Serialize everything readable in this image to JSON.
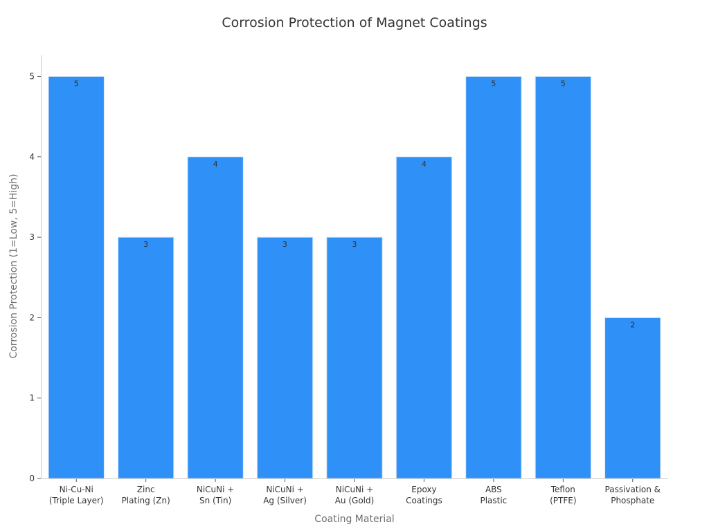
{
  "chart_data": {
    "type": "bar",
    "title": "Corrosion Protection of Magnet Coatings",
    "xlabel": "Coating Material",
    "ylabel": "Corrosion Protection (1=Low, 5=High)",
    "categories": [
      [
        "Ni-Cu-Ni",
        "(Triple Layer)"
      ],
      [
        "Zinc",
        "Plating (Zn)"
      ],
      [
        "NiCuNi +",
        "Sn (Tin)"
      ],
      [
        "NiCuNi +",
        "Ag (Silver)"
      ],
      [
        "NiCuNi +",
        "Au (Gold)"
      ],
      [
        "Epoxy",
        "Coatings"
      ],
      [
        "ABS",
        "Plastic"
      ],
      [
        "Teflon",
        "(PTFE)"
      ],
      [
        "Passivation &",
        "Phosphate"
      ]
    ],
    "values": [
      5,
      3,
      4,
      3,
      3,
      4,
      5,
      5,
      2
    ],
    "ylim": [
      0,
      5
    ],
    "yticks": [
      0,
      1,
      2,
      3,
      4,
      5
    ],
    "bar_color": "#2f90f7",
    "bar_edge_color": "#d6e6f5",
    "grid": false,
    "legend": "none"
  }
}
